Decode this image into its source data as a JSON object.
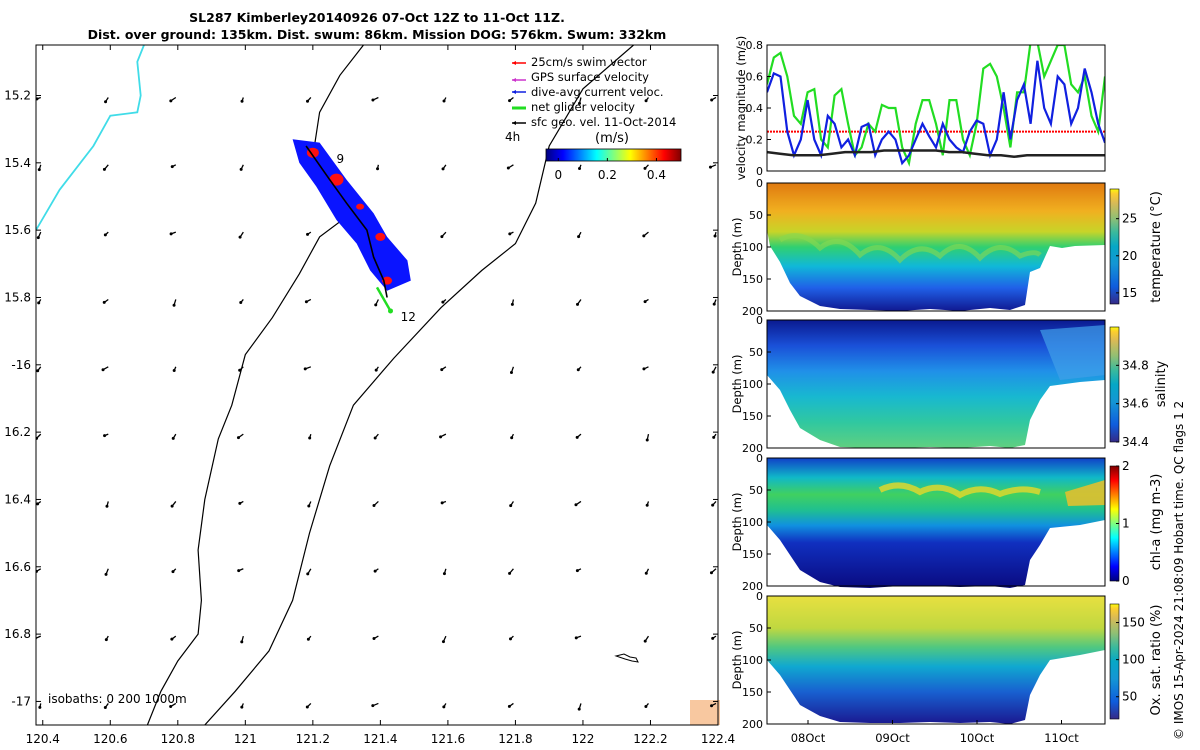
{
  "title": {
    "line1": "SL287 Kimberley20140926 07-Oct 12Z to 11-Oct 11Z.",
    "line2": "Dist. over ground: 135km. Dist. swum: 86km. Mission DOG: 576km. Swum: 332km"
  },
  "footer": "© IMOS 15-Apr-2024 21:08:09 Hobart time. QC flags 1  2",
  "colors": {
    "coast": "#40dce8",
    "swim": "#ff0000",
    "gps": "#cc33cc",
    "diveavg": "#1020e0",
    "net": "#22dd22",
    "sfcgeo": "#000000",
    "land": "#f8c8a0",
    "track_fill": "#0a14ff"
  },
  "chart_data": [
    {
      "type": "scatter",
      "name": "map",
      "xlim": [
        120.38,
        122.4
      ],
      "ylim": [
        -17.07,
        -15.05
      ],
      "xticks": [
        120.4,
        120.6,
        120.8,
        121,
        121.2,
        121.4,
        121.6,
        121.8,
        122,
        122.2,
        122.4
      ],
      "xtick_labels": [
        "120.4",
        "120.6",
        "120.8",
        "121",
        "121.2",
        "121.4",
        "121.6",
        "121.8",
        "122",
        "122.2",
        "122.4"
      ],
      "yticks": [
        -15.2,
        -15.4,
        -15.6,
        -15.8,
        -16,
        -16.2,
        -16.4,
        -16.6,
        -16.8,
        -17
      ],
      "ytick_labels": [
        "15.2",
        "15.4",
        "15.6",
        "15.8",
        "-16",
        "16.2",
        "16.4",
        "16.6",
        "16.8",
        "-17"
      ],
      "legend": {
        "entries": [
          "25cm/s swim vector",
          "GPS surface velocity",
          "dive-avg current veloc.",
          "net glider velocity",
          "sfc geo. vel. 11-Oct-2014"
        ],
        "time_label": "4h",
        "colorbar_title": "(m/s)",
        "colorbar_ticks": [
          0,
          0.2,
          0.4
        ],
        "colorbar_tick_labels": [
          "0",
          "0.2",
          "0.4"
        ],
        "colorbar_range": [
          -0.05,
          0.5
        ]
      },
      "annotations": [
        {
          "text": "9",
          "lon": 121.27,
          "lat": -15.4
        },
        {
          "text": "12",
          "lon": 121.46,
          "lat": -15.87
        }
      ],
      "isobaths_text": "isobaths: 0  200  1000m",
      "isobath_200": [
        [
          122.15,
          -15.05
        ],
        [
          122.0,
          -15.18
        ],
        [
          121.9,
          -15.35
        ],
        [
          121.86,
          -15.52
        ],
        [
          121.8,
          -15.64
        ],
        [
          121.7,
          -15.72
        ],
        [
          121.58,
          -15.83
        ],
        [
          121.44,
          -15.98
        ],
        [
          121.32,
          -16.12
        ],
        [
          121.25,
          -16.3
        ],
        [
          121.19,
          -16.5
        ],
        [
          121.14,
          -16.7
        ],
        [
          121.07,
          -16.85
        ],
        [
          120.97,
          -16.97
        ],
        [
          120.88,
          -17.07
        ]
      ],
      "isobath_0": [
        [
          121.35,
          -15.05
        ],
        [
          121.28,
          -15.14
        ],
        [
          121.22,
          -15.25
        ],
        [
          121.2,
          -15.38
        ],
        [
          121.24,
          -15.5
        ],
        [
          121.3,
          -15.56
        ],
        [
          121.22,
          -15.62
        ],
        [
          121.16,
          -15.73
        ],
        [
          121.08,
          -15.86
        ],
        [
          121.0,
          -15.97
        ],
        [
          120.96,
          -16.12
        ],
        [
          120.92,
          -16.22
        ],
        [
          120.88,
          -16.4
        ],
        [
          120.86,
          -16.55
        ],
        [
          120.87,
          -16.7
        ],
        [
          120.86,
          -16.8
        ],
        [
          120.8,
          -16.88
        ],
        [
          120.75,
          -16.97
        ],
        [
          120.71,
          -17.07
        ]
      ],
      "coast": [
        [
          120.38,
          -15.6
        ],
        [
          120.45,
          -15.48
        ],
        [
          120.55,
          -15.35
        ],
        [
          120.6,
          -15.26
        ],
        [
          120.68,
          -15.25
        ],
        [
          120.69,
          -15.2
        ],
        [
          120.68,
          -15.1
        ],
        [
          120.7,
          -15.05
        ]
      ],
      "glider_track": [
        [
          121.18,
          -15.35
        ],
        [
          121.25,
          -15.45
        ],
        [
          121.3,
          -15.52
        ],
        [
          121.36,
          -15.6
        ],
        [
          121.38,
          -15.68
        ],
        [
          121.41,
          -15.75
        ],
        [
          121.42,
          -15.8
        ]
      ],
      "track_polygon": [
        [
          121.14,
          -15.33
        ],
        [
          121.22,
          -15.34
        ],
        [
          121.3,
          -15.45
        ],
        [
          121.38,
          -15.55
        ],
        [
          121.42,
          -15.62
        ],
        [
          121.48,
          -15.69
        ],
        [
          121.49,
          -15.75
        ],
        [
          121.42,
          -15.78
        ],
        [
          121.37,
          -15.72
        ],
        [
          121.33,
          -15.64
        ],
        [
          121.27,
          -15.57
        ],
        [
          121.21,
          -15.47
        ],
        [
          121.16,
          -15.4
        ]
      ],
      "net_vector": [
        [
          121.39,
          -15.77
        ],
        [
          121.43,
          -15.84
        ]
      ],
      "vector_grid_lons": [
        120.4,
        120.6,
        120.8,
        121,
        121.2,
        121.4,
        121.6,
        121.8,
        122,
        122.2,
        122.4
      ],
      "vector_grid_lats": [
        -15.2,
        -15.4,
        -15.6,
        -15.8,
        -16,
        -16.2,
        -16.4,
        -16.6,
        -16.8,
        -17
      ]
    },
    {
      "type": "line",
      "name": "velocity",
      "ylabel": "velocity magnitude (m/s)",
      "ylim": [
        0,
        0.8
      ],
      "yticks": [
        0,
        0.2,
        0.4,
        0.6,
        0.8
      ],
      "ytick_labels": [
        "0",
        "0.2",
        "0.4",
        "0.6",
        "0.8"
      ],
      "series": [
        {
          "name": "net glider velocity",
          "color": "#22dd22",
          "values": [
            0.55,
            0.72,
            0.75,
            0.6,
            0.35,
            0.3,
            0.5,
            0.52,
            0.2,
            0.15,
            0.48,
            0.52,
            0.3,
            0.1,
            0.15,
            0.3,
            0.25,
            0.42,
            0.4,
            0.4,
            0.15,
            0.05,
            0.3,
            0.45,
            0.45,
            0.3,
            0.1,
            0.45,
            0.45,
            0.2,
            0.1,
            0.3,
            0.65,
            0.68,
            0.6,
            0.4,
            0.15,
            0.5,
            0.5,
            0.82,
            0.82,
            0.6,
            0.7,
            0.8,
            0.8,
            0.55,
            0.5,
            0.6,
            0.35,
            0.25,
            0.6
          ]
        },
        {
          "name": "dive-avg current",
          "color": "#1020e0",
          "values": [
            0.5,
            0.62,
            0.6,
            0.25,
            0.1,
            0.2,
            0.45,
            0.2,
            0.1,
            0.35,
            0.3,
            0.15,
            0.2,
            0.1,
            0.28,
            0.3,
            0.1,
            0.2,
            0.25,
            0.2,
            0.05,
            0.1,
            0.2,
            0.3,
            0.22,
            0.15,
            0.3,
            0.2,
            0.15,
            0.12,
            0.25,
            0.32,
            0.3,
            0.1,
            0.2,
            0.5,
            0.2,
            0.45,
            0.55,
            0.3,
            0.7,
            0.4,
            0.3,
            0.6,
            0.55,
            0.3,
            0.4,
            0.65,
            0.5,
            0.3,
            0.18
          ]
        },
        {
          "name": "sfc geo vel",
          "color": "#222222",
          "values": [
            0.12,
            0.11,
            0.1,
            0.1,
            0.1,
            0.11,
            0.12,
            0.12,
            0.12,
            0.13,
            0.13,
            0.13,
            0.13,
            0.13,
            0.12,
            0.12,
            0.11,
            0.1,
            0.1,
            0.09,
            0.1,
            0.1,
            0.1,
            0.1,
            0.1,
            0.1,
            0.1
          ]
        }
      ],
      "reference_line": {
        "name": "25cm/s swim",
        "color": "#ff0000",
        "value": 0.25
      }
    },
    {
      "type": "heatmap",
      "name": "temperature",
      "ylabel": "Depth (m)",
      "yticks": [
        0,
        50,
        100,
        150,
        200
      ],
      "ytick_labels": [
        "0",
        "50",
        "100",
        "150",
        "200"
      ],
      "colorbar_label": "temperature (°C)",
      "colorbar_range": [
        13.5,
        29
      ],
      "colorbar_ticks": [
        15,
        20,
        25
      ],
      "colorbar_tick_labels": [
        "15",
        "20",
        "25"
      ]
    },
    {
      "type": "heatmap",
      "name": "salinity",
      "ylabel": "Depth (m)",
      "yticks": [
        0,
        50,
        100,
        150,
        200
      ],
      "ytick_labels": [
        "0",
        "50",
        "100",
        "150",
        "200"
      ],
      "colorbar_label": "salinity",
      "colorbar_range": [
        34.4,
        35.0
      ],
      "colorbar_ticks": [
        34.4,
        34.6,
        34.8
      ],
      "colorbar_tick_labels": [
        "34.4",
        "34.6",
        "34.8"
      ]
    },
    {
      "type": "heatmap",
      "name": "chlorophyll",
      "ylabel": "Depth (m)",
      "yticks": [
        0,
        50,
        100,
        150,
        200
      ],
      "ytick_labels": [
        "0",
        "50",
        "100",
        "150",
        "200"
      ],
      "colorbar_label": "chl-a (mg m-3)",
      "colorbar_range": [
        0,
        2
      ],
      "colorbar_ticks": [
        0,
        1,
        2
      ],
      "colorbar_tick_labels": [
        "0",
        "1",
        "2"
      ]
    },
    {
      "type": "heatmap",
      "name": "oxygen",
      "ylabel": "Depth (m)",
      "xlabel_ticks": [
        "08Oct",
        "09Oct",
        "10Oct",
        "11Oct"
      ],
      "yticks": [
        0,
        50,
        100,
        150,
        200
      ],
      "ytick_labels": [
        "0",
        "50",
        "100",
        "150",
        "200"
      ],
      "colorbar_label": "Ox. sat. ratio (%)",
      "colorbar_range": [
        20,
        175
      ],
      "colorbar_ticks": [
        50,
        100,
        150
      ],
      "colorbar_tick_labels": [
        "50",
        "100",
        "150"
      ]
    }
  ]
}
